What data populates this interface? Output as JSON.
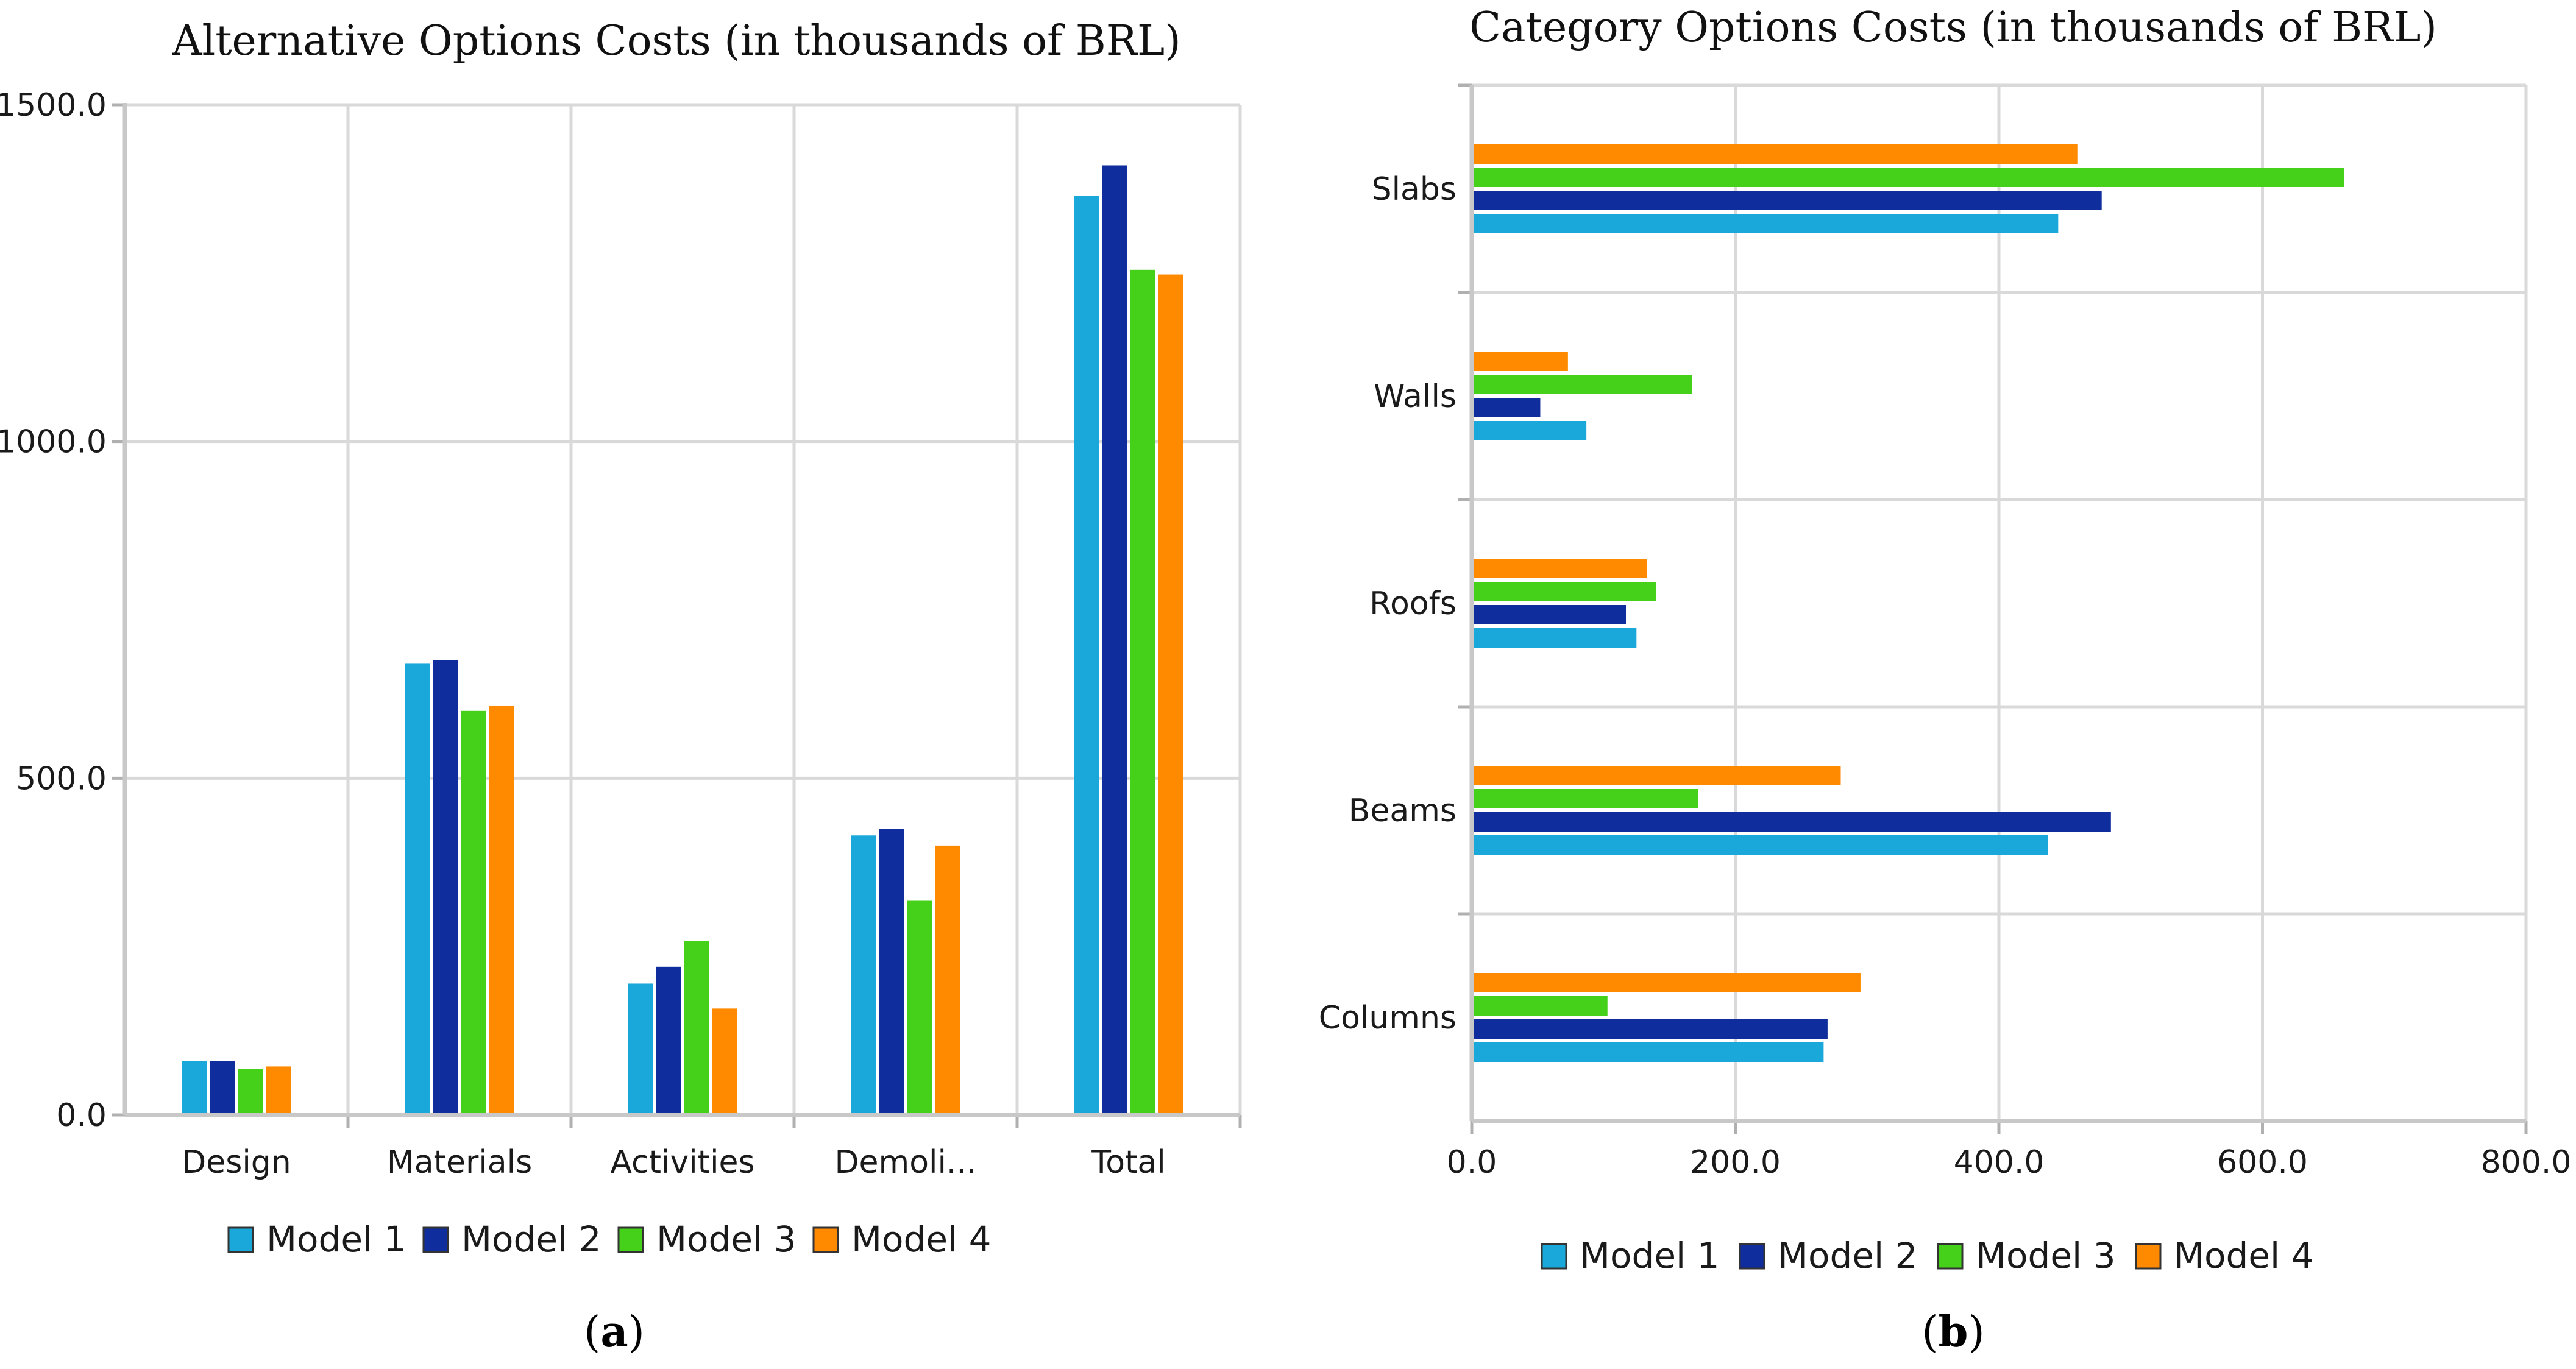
{
  "series_colors": [
    "#1aa7d9",
    "#0f2d9c",
    "#45d01a",
    "#ff8a00"
  ],
  "chart_data": [
    {
      "type": "bar",
      "orientation": "vertical",
      "title": "Alternative Options Costs (in thousands of BRL)",
      "categories": [
        "Design",
        "Materials",
        "Activities",
        "Demoli...",
        "Total"
      ],
      "series": [
        {
          "name": "Model 1",
          "values": [
            80,
            670,
            195,
            415,
            1365
          ]
        },
        {
          "name": "Model 2",
          "values": [
            80,
            675,
            220,
            425,
            1410
          ]
        },
        {
          "name": "Model 3",
          "values": [
            68,
            600,
            258,
            318,
            1255
          ]
        },
        {
          "name": "Model 4",
          "values": [
            72,
            608,
            158,
            400,
            1248
          ]
        }
      ],
      "ylim": [
        0,
        1500
      ],
      "yticks": [
        0,
        500,
        1000,
        1500
      ],
      "ytick_labels": [
        "0.0",
        "500.0",
        "1000.0",
        "1500.0"
      ],
      "grid": true,
      "legend": "bottom",
      "caption_label": "a"
    },
    {
      "type": "bar",
      "orientation": "horizontal",
      "title": "Category Options Costs (in thousands of BRL)",
      "categories": [
        "Slabs",
        "Walls",
        "Roofs",
        "Beams",
        "Columns"
      ],
      "series": [
        {
          "name": "Model 1",
          "values": [
            445,
            87,
            125,
            437,
            267
          ]
        },
        {
          "name": "Model 2",
          "values": [
            478,
            52,
            117,
            485,
            270
          ]
        },
        {
          "name": "Model 3",
          "values": [
            662,
            167,
            140,
            172,
            103
          ]
        },
        {
          "name": "Model 4",
          "values": [
            460,
            73,
            133,
            280,
            295
          ]
        }
      ],
      "xlim": [
        0,
        800
      ],
      "xticks": [
        0,
        200,
        400,
        600,
        800
      ],
      "xtick_labels": [
        "0.0",
        "200.0",
        "400.0",
        "600.0",
        "800.0"
      ],
      "grid": true,
      "legend": "bottom",
      "caption_label": "b"
    }
  ],
  "captions": {
    "a": {
      "open": "(",
      "label": "a",
      "close": ")"
    },
    "b": {
      "open": "(",
      "label": "b",
      "close": ")"
    }
  }
}
